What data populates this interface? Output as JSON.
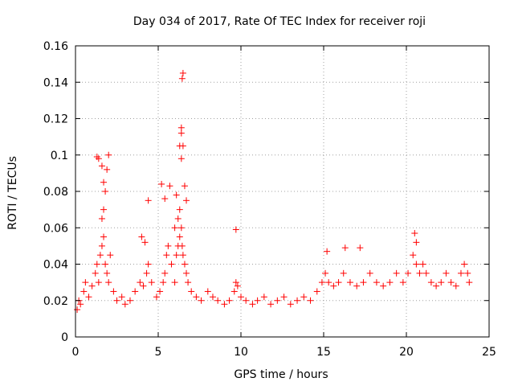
{
  "chart_data": {
    "type": "scatter",
    "title": "Day 034 of 2017, Rate Of TEC Index for receiver roji",
    "xlabel": "GPS time / hours",
    "ylabel": "ROTI / TECUs",
    "xlim": [
      0,
      25
    ],
    "ylim": [
      0,
      0.16
    ],
    "xticks": [
      0,
      5,
      10,
      15,
      20,
      25
    ],
    "xtick_labels": [
      "0",
      "5",
      "10",
      "15",
      "20",
      "25"
    ],
    "yticks": [
      0,
      0.02,
      0.04,
      0.06,
      0.08,
      0.1,
      0.12,
      0.14,
      0.16
    ],
    "ytick_labels": [
      "0",
      "0.02",
      "0.04",
      "0.06",
      "0.08",
      "0.1",
      "0.12",
      "0.14",
      "0.16"
    ],
    "grid": true,
    "marker": "plus",
    "color": "#ff0000",
    "series": [
      {
        "name": "ROTI",
        "x": [
          0.1,
          0.2,
          0.3,
          0.5,
          0.6,
          0.8,
          1.0,
          1.2,
          1.3,
          1.4,
          1.5,
          1.6,
          1.7,
          1.8,
          1.9,
          2.0,
          2.1,
          2.3,
          2.5,
          2.8,
          3.0,
          3.3,
          3.6,
          3.9,
          4.1,
          4.3,
          4.4,
          4.6,
          4.9,
          5.1,
          5.3,
          5.4,
          5.5,
          5.6,
          5.8,
          6.0,
          6.1,
          6.2,
          6.3,
          6.4,
          6.45,
          6.5,
          6.6,
          6.7,
          6.8,
          7.0,
          7.3,
          7.6,
          8.0,
          8.3,
          8.6,
          9.0,
          9.3,
          9.6,
          9.7,
          9.8,
          10.0,
          10.3,
          10.7,
          11.0,
          11.4,
          11.8,
          12.2,
          12.6,
          13.0,
          13.4,
          13.8,
          14.2,
          14.6,
          14.9,
          15.1,
          15.3,
          15.6,
          15.9,
          16.2,
          16.6,
          17.0,
          17.4,
          17.8,
          18.2,
          18.6,
          19.0,
          19.4,
          19.8,
          20.1,
          20.4,
          20.6,
          20.8,
          21.0,
          21.2,
          21.5,
          21.8,
          22.1,
          22.4,
          22.7,
          23.0,
          23.3,
          23.5,
          23.7,
          23.8,
          1.3,
          1.4,
          1.6,
          1.7,
          1.8,
          1.9,
          2.0,
          1.6,
          1.7,
          4.0,
          4.2,
          4.4,
          5.2,
          5.4,
          5.7,
          6.0,
          6.1,
          6.3,
          6.4,
          6.4,
          6.45,
          6.5,
          6.5,
          6.4,
          6.6,
          6.3,
          6.2,
          6.7,
          9.7,
          15.2,
          16.3,
          17.2,
          20.5,
          20.6
        ],
        "y": [
          0.015,
          0.02,
          0.018,
          0.025,
          0.03,
          0.022,
          0.028,
          0.035,
          0.04,
          0.03,
          0.045,
          0.05,
          0.055,
          0.04,
          0.035,
          0.03,
          0.045,
          0.025,
          0.02,
          0.022,
          0.018,
          0.02,
          0.025,
          0.03,
          0.028,
          0.035,
          0.04,
          0.03,
          0.022,
          0.025,
          0.03,
          0.035,
          0.045,
          0.05,
          0.04,
          0.03,
          0.045,
          0.05,
          0.055,
          0.06,
          0.05,
          0.045,
          0.04,
          0.035,
          0.03,
          0.025,
          0.022,
          0.02,
          0.025,
          0.022,
          0.02,
          0.018,
          0.02,
          0.025,
          0.03,
          0.028,
          0.022,
          0.02,
          0.018,
          0.02,
          0.022,
          0.018,
          0.02,
          0.022,
          0.018,
          0.02,
          0.022,
          0.02,
          0.025,
          0.03,
          0.035,
          0.03,
          0.028,
          0.03,
          0.035,
          0.03,
          0.028,
          0.03,
          0.035,
          0.03,
          0.028,
          0.03,
          0.035,
          0.03,
          0.035,
          0.045,
          0.04,
          0.035,
          0.04,
          0.035,
          0.03,
          0.028,
          0.03,
          0.035,
          0.03,
          0.028,
          0.035,
          0.04,
          0.035,
          0.03,
          0.099,
          0.098,
          0.094,
          0.085,
          0.08,
          0.092,
          0.1,
          0.065,
          0.07,
          0.055,
          0.052,
          0.075,
          0.084,
          0.076,
          0.083,
          0.06,
          0.078,
          0.105,
          0.112,
          0.115,
          0.142,
          0.145,
          0.105,
          0.098,
          0.083,
          0.07,
          0.065,
          0.075,
          0.059,
          0.047,
          0.049,
          0.049,
          0.057,
          0.052
        ]
      }
    ]
  }
}
